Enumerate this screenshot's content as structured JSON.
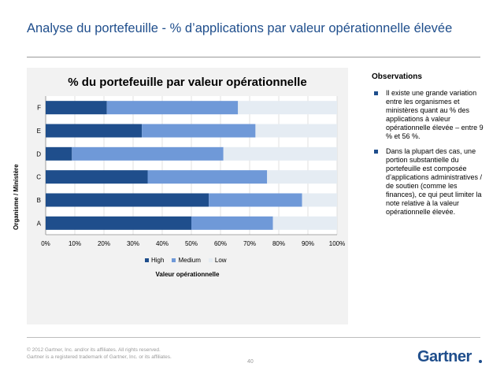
{
  "slide": {
    "title": "Analyse du portefeuille - % d’applications par valeur opérationnelle élevée"
  },
  "observations": {
    "title": "Observations",
    "items": [
      "Il existe une grande variation entre les organismes et ministères quant au % des applications à valeur opérationnelle élevée – entre 9 % et 56 %.",
      "Dans la plupart des cas, une portion substantielle du portefeuille est composée d’applications administratives / de soutien (comme les finances), ce qui peut limiter la note relative à la valeur opérationnelle élevée."
    ]
  },
  "footer": {
    "copyright_line1": "© 2012 Gartner, Inc. and/or its affiliates. All rights reserved.",
    "copyright_line2": "Gartner is a registered trademark of Gartner, Inc. or its affiliates.",
    "page_number": "40",
    "logo_text": "Gartner"
  },
  "colors": {
    "high": "#1f4e8c",
    "medium": "#6f99d8",
    "low": "#e5ecf3",
    "title": "#1f4e8c"
  },
  "chart_data": {
    "type": "bar",
    "orientation": "horizontal",
    "stacked": true,
    "title": "% du portefeuille par valeur opérationnelle",
    "xlabel": "Valeur opérationnelle",
    "ylabel": "Organisme / Ministère",
    "categories": [
      "A",
      "B",
      "C",
      "D",
      "E",
      "F"
    ],
    "series": [
      {
        "name": "High",
        "values": [
          50,
          56,
          35,
          9,
          33,
          21
        ]
      },
      {
        "name": "Medium",
        "values": [
          28,
          32,
          41,
          52,
          39,
          45
        ]
      },
      {
        "name": "Low",
        "values": [
          22,
          12,
          24,
          39,
          28,
          34
        ]
      }
    ],
    "xlim": [
      0,
      100
    ],
    "xticks": [
      "0%",
      "10%",
      "20%",
      "30%",
      "40%",
      "50%",
      "60%",
      "70%",
      "80%",
      "90%",
      "100%"
    ],
    "grid": true,
    "legend_position": "bottom"
  }
}
